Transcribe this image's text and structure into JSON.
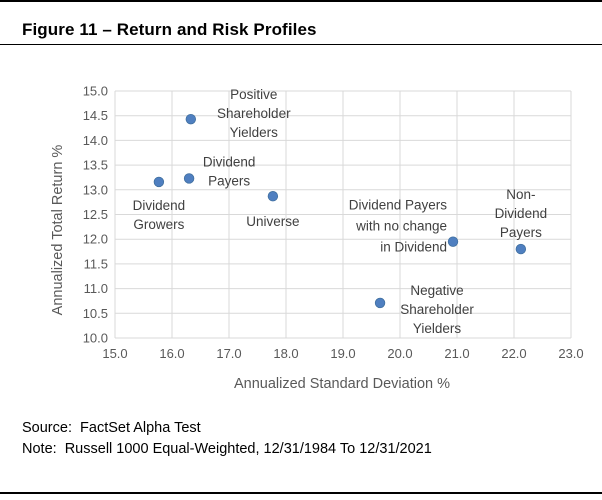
{
  "figure": {
    "title": "Figure 11 – Return and Risk Profiles"
  },
  "notes": {
    "source": "Source:  FactSet Alpha Test",
    "note": "Note:  Russell 1000 Equal-Weighted, 12/31/1984 To 12/31/2021"
  },
  "chart_data": {
    "type": "scatter",
    "title": "",
    "xlabel": "Annualized Standard Deviation %",
    "ylabel": "Annualized Total Return %",
    "xlim": [
      15.0,
      23.0
    ],
    "ylim": [
      10.0,
      15.0
    ],
    "x_ticks": [
      "15.0",
      "16.0",
      "17.0",
      "18.0",
      "19.0",
      "20.0",
      "21.0",
      "22.0",
      "23.0"
    ],
    "y_ticks": [
      "10.0",
      "10.5",
      "11.0",
      "11.5",
      "12.0",
      "12.5",
      "13.0",
      "13.5",
      "14.0",
      "14.5",
      "15.0"
    ],
    "grid": true,
    "marker_color": "#4f7fc0",
    "points": [
      {
        "label": [
          "Positive",
          "Shareholder",
          "Yielders"
        ],
        "x": 16.33,
        "y": 14.43
      },
      {
        "label": [
          "Dividend",
          "Payers"
        ],
        "x": 16.3,
        "y": 13.23
      },
      {
        "label": [
          "Dividend",
          "Growers"
        ],
        "x": 15.77,
        "y": 13.16
      },
      {
        "label": [
          "Universe"
        ],
        "x": 17.77,
        "y": 12.87
      },
      {
        "label": [
          "Dividend Payers",
          "with no change",
          "in Dividend"
        ],
        "x": 20.93,
        "y": 11.95
      },
      {
        "label": [
          "Non-",
          "Dividend",
          "Payers"
        ],
        "x": 22.12,
        "y": 11.8
      },
      {
        "label": [
          "Negative",
          "Shareholder",
          "Yielders"
        ],
        "x": 19.65,
        "y": 10.71
      }
    ]
  }
}
